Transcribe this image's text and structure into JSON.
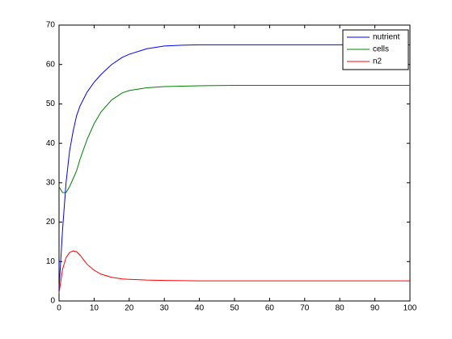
{
  "chart_data": {
    "type": "line",
    "x": [
      0,
      1,
      2,
      3,
      4,
      5,
      6,
      8,
      10,
      12,
      15,
      18,
      20,
      25,
      30,
      35,
      40,
      50,
      60,
      70,
      80,
      90,
      100
    ],
    "series": [
      {
        "name": "nutrient",
        "color": "#0000ff",
        "values": [
          3,
          18,
          30,
          38,
          43,
          47,
          49.5,
          53,
          55.5,
          57.5,
          60,
          61.8,
          62.6,
          64,
          64.7,
          64.9,
          65,
          65,
          65,
          65,
          65,
          65,
          65
        ]
      },
      {
        "name": "cells",
        "color": "#008000",
        "values": [
          29,
          27.5,
          27.5,
          29,
          31,
          33,
          36,
          41,
          45,
          48,
          51,
          52.8,
          53.4,
          54.1,
          54.4,
          54.5,
          54.6,
          54.7,
          54.7,
          54.7,
          54.7,
          54.7,
          54.7
        ]
      },
      {
        "name": "n2",
        "color": "#ff0000",
        "values": [
          2,
          8,
          11,
          12.3,
          12.7,
          12.5,
          11.6,
          9.3,
          7.8,
          6.8,
          6,
          5.6,
          5.5,
          5.3,
          5.2,
          5.15,
          5.1,
          5.1,
          5.1,
          5.1,
          5.1,
          5.1,
          5.1
        ]
      }
    ],
    "xlim": [
      0,
      100
    ],
    "xticks": [
      0,
      10,
      20,
      30,
      40,
      50,
      60,
      70,
      80,
      90,
      100
    ],
    "ylim": [
      0,
      70
    ],
    "yticks": [
      0,
      10,
      20,
      30,
      40,
      50,
      60,
      70
    ],
    "grid": false,
    "legend": "top-right"
  }
}
